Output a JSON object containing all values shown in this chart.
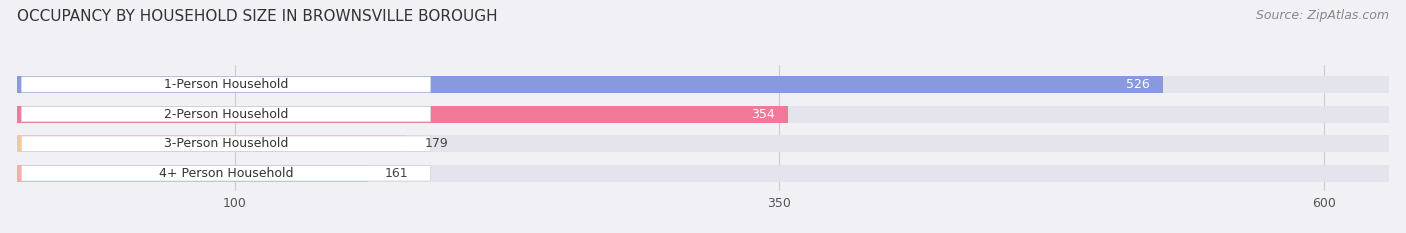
{
  "title": "OCCUPANCY BY HOUSEHOLD SIZE IN BROWNSVILLE BOROUGH",
  "source": "Source: ZipAtlas.com",
  "categories": [
    "1-Person Household",
    "2-Person Household",
    "3-Person Household",
    "4+ Person Household"
  ],
  "values": [
    526,
    354,
    179,
    161
  ],
  "bar_colors": [
    "#8899dd",
    "#f07898",
    "#f5c89a",
    "#f5afa8"
  ],
  "background_color": "#f0f0f5",
  "bar_bg_color": "#e4e4ec",
  "xlim": [
    0,
    630
  ],
  "xticks": [
    100,
    350,
    600
  ],
  "title_fontsize": 11,
  "source_fontsize": 9,
  "tick_fontsize": 9,
  "label_fontsize": 9,
  "value_fontsize": 9,
  "bar_height": 0.58,
  "figsize": [
    14.06,
    2.33
  ],
  "dpi": 100
}
